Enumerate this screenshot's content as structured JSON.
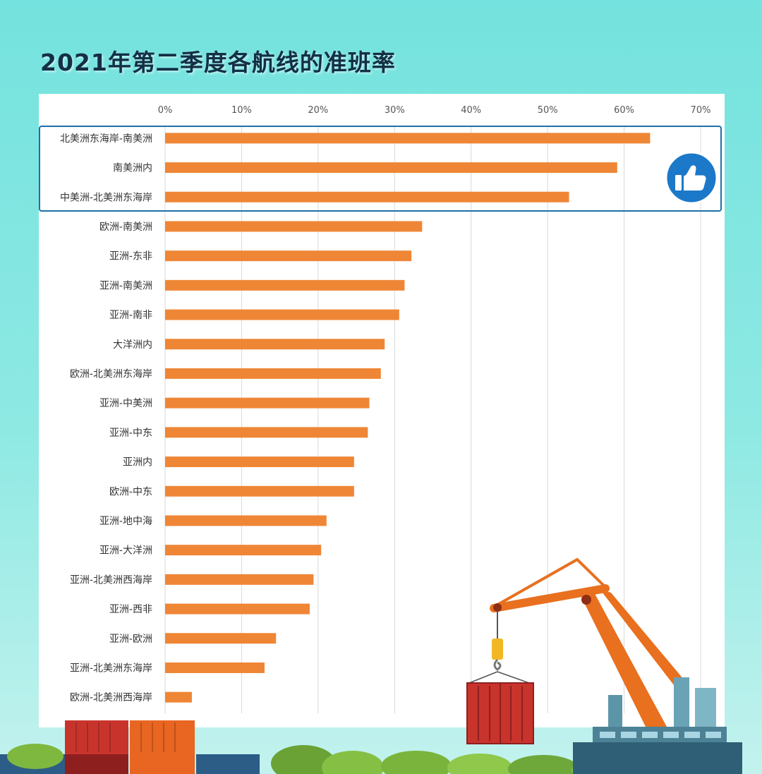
{
  "colors": {
    "bar": "#ef8636",
    "highlight_border": "#1e6fa8",
    "thumb_badge": "#1c78c8",
    "grid": "#d9d9d9",
    "title": "#132f45"
  },
  "icons": {
    "highlight": "thumbs-up-icon"
  },
  "chart_data": {
    "type": "bar",
    "orientation": "horizontal",
    "title": "2021年第二季度各航线的准班率",
    "xlabel": "",
    "ylabel": "",
    "xlim": [
      0,
      0.7
    ],
    "xticks": [
      "0%",
      "10%",
      "20%",
      "30%",
      "40%",
      "50%",
      "60%",
      "70%"
    ],
    "grid": true,
    "highlight": "top-3",
    "categories": [
      "北美洲东海岸-南美洲",
      "南美洲内",
      "中美洲-北美洲东海岸",
      "欧洲-南美洲",
      "亚洲-东非",
      "亚洲-南美洲",
      "亚洲-南非",
      "大洋洲内",
      "欧洲-北美洲东海岸",
      "亚洲-中美洲",
      "亚洲-中东",
      "亚洲内",
      "欧洲-中东",
      "亚洲-地中海",
      "亚洲-大洋洲",
      "亚洲-北美洲西海岸",
      "亚洲-西非",
      "亚洲-欧洲",
      "亚洲-北美洲东海岸",
      "欧洲-北美洲西海岸"
    ],
    "values": [
      0.634,
      0.591,
      0.528,
      0.336,
      0.322,
      0.313,
      0.306,
      0.287,
      0.282,
      0.267,
      0.265,
      0.247,
      0.247,
      0.211,
      0.204,
      0.194,
      0.189,
      0.145,
      0.13,
      0.035
    ]
  }
}
